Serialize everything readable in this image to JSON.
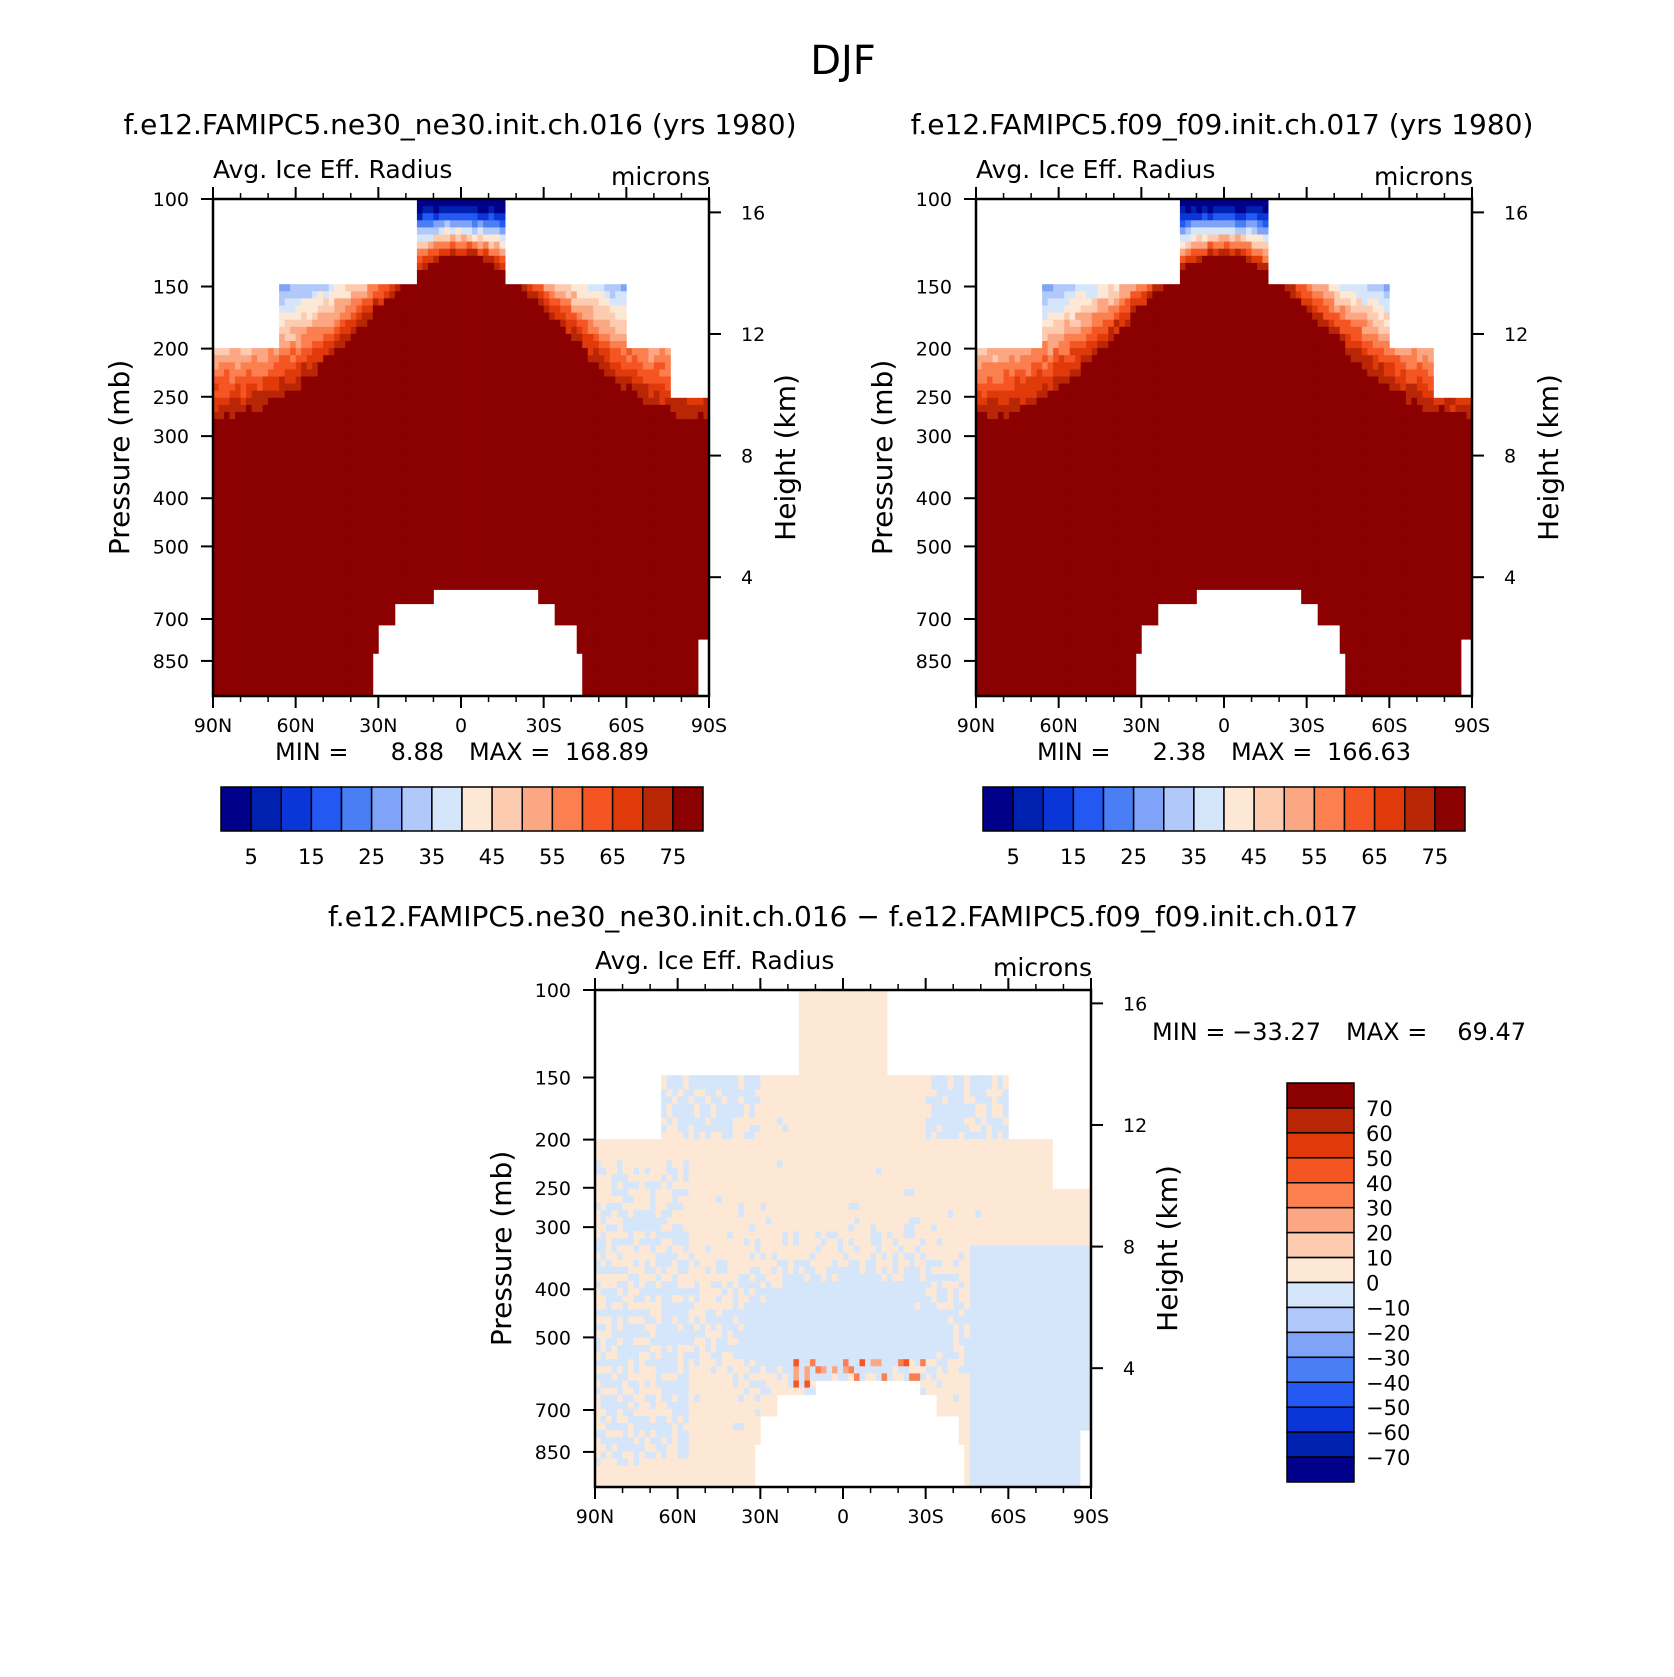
{
  "figure_title": "DJF",
  "colors": {
    "abs_scale": [
      "#00008b",
      "#0020b0",
      "#0a36d8",
      "#2458f2",
      "#4a7ef5",
      "#7fa3f7",
      "#b0c8fa",
      "#d6e6fa",
      "#fde8d6",
      "#fdcbb0",
      "#fca783",
      "#fb7f4f",
      "#f55523",
      "#e03a0a",
      "#b92605",
      "#8b0000"
    ],
    "diff_scale": [
      "#00008b",
      "#0020b0",
      "#0a36d8",
      "#2458f2",
      "#4a7ef5",
      "#7fa3f7",
      "#b0c8fa",
      "#d6e6fa",
      "#fde8d6",
      "#fdcbb0",
      "#fca783",
      "#fb7f4f",
      "#f55523",
      "#e03a0a",
      "#b92605",
      "#8b0000"
    ]
  },
  "chart_data": [
    {
      "type": "heatmap",
      "title": "f.e12.FAMIPC5.ne30_ne30.init.ch.016 (yrs 1980)",
      "subtitle": "Avg. Ice Eff. Radius",
      "units": "microns",
      "ylabel": "Pressure (mb)",
      "y2label": "Height (km)",
      "x_ticks": [
        "90N",
        "60N",
        "30N",
        "0",
        "30S",
        "60S",
        "90S"
      ],
      "y_ticks": [
        100,
        150,
        200,
        250,
        300,
        400,
        500,
        700,
        850
      ],
      "y2_ticks": [
        16,
        12,
        8,
        4
      ],
      "ylim": [
        1000,
        100
      ],
      "min_label": "MIN =",
      "min_value": "8.88",
      "max_label": "MAX =",
      "max_value": "168.89",
      "colorbar_labels": [
        "5",
        "15",
        "25",
        "35",
        "45",
        "55",
        "65",
        "75"
      ]
    },
    {
      "type": "heatmap",
      "title": "f.e12.FAMIPC5.f09_f09.init.ch.017 (yrs 1980)",
      "subtitle": "Avg. Ice Eff. Radius",
      "units": "microns",
      "ylabel": "Pressure (mb)",
      "y2label": "Height (km)",
      "x_ticks": [
        "90N",
        "60N",
        "30N",
        "0",
        "30S",
        "60S",
        "90S"
      ],
      "y_ticks": [
        100,
        150,
        200,
        250,
        300,
        400,
        500,
        700,
        850
      ],
      "y2_ticks": [
        16,
        12,
        8,
        4
      ],
      "ylim": [
        1000,
        100
      ],
      "min_label": "MIN =",
      "min_value": "2.38",
      "max_label": "MAX =",
      "max_value": "166.63",
      "colorbar_labels": [
        "5",
        "15",
        "25",
        "35",
        "45",
        "55",
        "65",
        "75"
      ]
    },
    {
      "type": "heatmap",
      "title": "f.e12.FAMIPC5.ne30_ne30.init.ch.016 − f.e12.FAMIPC5.f09_f09.init.ch.017",
      "subtitle": "Avg. Ice Eff. Radius",
      "units": "microns",
      "ylabel": "Pressure (mb)",
      "y2label": "Height (km)",
      "x_ticks": [
        "90N",
        "60N",
        "30N",
        "0",
        "30S",
        "60S",
        "90S"
      ],
      "y_ticks": [
        100,
        150,
        200,
        250,
        300,
        400,
        500,
        700,
        850
      ],
      "y2_ticks": [
        16,
        12,
        8,
        4
      ],
      "ylim": [
        1000,
        100
      ],
      "min_label": "MIN =",
      "min_value": "−33.27",
      "max_label": "MAX =",
      "max_value": "69.47",
      "colorbar_labels": [
        "70",
        "60",
        "50",
        "40",
        "30",
        "20",
        "10",
        "0",
        "−10",
        "−20",
        "−30",
        "−40",
        "−50",
        "−60",
        "−70"
      ]
    }
  ]
}
